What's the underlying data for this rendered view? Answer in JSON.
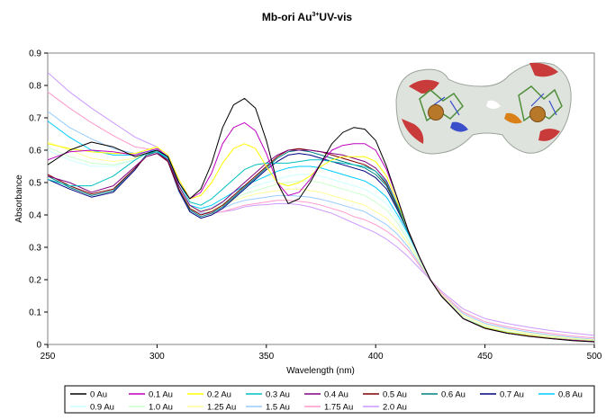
{
  "chart_data": {
    "type": "line",
    "title": "Mb-ori Au",
    "title_superscript": "3+",
    "title_suffix": "UV-vis",
    "xlabel": "Wavelength (nm)",
    "ylabel": "Absorbance",
    "xlim": [
      250,
      500
    ],
    "ylim": [
      0,
      0.9
    ],
    "x_ticks": [
      "250",
      "300",
      "350",
      "400",
      "450",
      "500"
    ],
    "y_ticks": [
      "0",
      "0.1",
      "0.2",
      "0.3",
      "0.4",
      "0.5",
      "0.6",
      "0.7",
      "0.8",
      "0.9"
    ],
    "grid": false,
    "legend_position": "bottom",
    "inset_image": "protein surface structure with two gold atoms",
    "x": [
      250,
      260,
      270,
      280,
      290,
      295,
      300,
      305,
      310,
      315,
      320,
      325,
      330,
      335,
      340,
      345,
      350,
      355,
      360,
      365,
      370,
      375,
      380,
      385,
      390,
      395,
      400,
      405,
      410,
      415,
      420,
      425,
      430,
      440,
      450,
      460,
      470,
      480,
      490,
      500
    ],
    "series": [
      {
        "name": "0 Au",
        "color": "#000000",
        "values": [
          0.555,
          0.6,
          0.625,
          0.61,
          0.58,
          0.59,
          0.6,
          0.58,
          0.5,
          0.45,
          0.48,
          0.56,
          0.67,
          0.74,
          0.76,
          0.73,
          0.63,
          0.5,
          0.435,
          0.45,
          0.5,
          0.56,
          0.62,
          0.655,
          0.67,
          0.665,
          0.63,
          0.55,
          0.45,
          0.35,
          0.27,
          0.2,
          0.15,
          0.08,
          0.05,
          0.035,
          0.025,
          0.018,
          0.012,
          0.008
        ]
      },
      {
        "name": "0.1 Au",
        "color": "#c000c0",
        "values": [
          0.57,
          0.595,
          0.6,
          0.595,
          0.585,
          0.595,
          0.605,
          0.58,
          0.5,
          0.45,
          0.47,
          0.53,
          0.62,
          0.67,
          0.685,
          0.66,
          0.59,
          0.5,
          0.46,
          0.47,
          0.51,
          0.56,
          0.6,
          0.615,
          0.62,
          0.62,
          0.6,
          0.54,
          0.45,
          0.35,
          0.27,
          0.2,
          0.15,
          0.08,
          0.05,
          0.035,
          0.026,
          0.019,
          0.013,
          0.009
        ]
      },
      {
        "name": "0.2 Au",
        "color": "#ffff00",
        "values": [
          0.62,
          0.605,
          0.595,
          0.59,
          0.59,
          0.6,
          0.61,
          0.585,
          0.51,
          0.45,
          0.46,
          0.5,
          0.56,
          0.605,
          0.62,
          0.605,
          0.55,
          0.5,
          0.49,
          0.5,
          0.52,
          0.55,
          0.57,
          0.58,
          0.58,
          0.58,
          0.565,
          0.52,
          0.44,
          0.35,
          0.27,
          0.2,
          0.15,
          0.08,
          0.052,
          0.037,
          0.028,
          0.02,
          0.014,
          0.01
        ]
      },
      {
        "name": "0.3 Au",
        "color": "#00c0c0",
        "values": [
          0.51,
          0.49,
          0.49,
          0.52,
          0.57,
          0.59,
          0.595,
          0.575,
          0.5,
          0.44,
          0.43,
          0.45,
          0.48,
          0.51,
          0.54,
          0.555,
          0.56,
          0.56,
          0.56,
          0.565,
          0.57,
          0.57,
          0.565,
          0.56,
          0.555,
          0.55,
          0.535,
          0.5,
          0.43,
          0.35,
          0.27,
          0.2,
          0.15,
          0.08,
          0.052,
          0.037,
          0.028,
          0.02,
          0.014,
          0.01
        ]
      },
      {
        "name": "0.4 Au",
        "color": "#800080",
        "values": [
          0.52,
          0.5,
          0.47,
          0.49,
          0.55,
          0.58,
          0.59,
          0.57,
          0.49,
          0.43,
          0.41,
          0.42,
          0.44,
          0.47,
          0.5,
          0.53,
          0.56,
          0.585,
          0.6,
          0.6,
          0.6,
          0.595,
          0.59,
          0.585,
          0.575,
          0.565,
          0.545,
          0.505,
          0.43,
          0.35,
          0.27,
          0.2,
          0.15,
          0.08,
          0.05,
          0.035,
          0.026,
          0.019,
          0.013,
          0.009
        ]
      },
      {
        "name": "0.5 Au",
        "color": "#800000",
        "values": [
          0.525,
          0.49,
          0.465,
          0.48,
          0.545,
          0.58,
          0.59,
          0.565,
          0.48,
          0.42,
          0.4,
          0.41,
          0.43,
          0.46,
          0.49,
          0.52,
          0.55,
          0.58,
          0.6,
          0.605,
          0.6,
          0.595,
          0.585,
          0.575,
          0.565,
          0.555,
          0.535,
          0.495,
          0.425,
          0.35,
          0.27,
          0.2,
          0.15,
          0.08,
          0.05,
          0.035,
          0.026,
          0.019,
          0.013,
          0.009
        ]
      },
      {
        "name": "0.6 Au",
        "color": "#008080",
        "values": [
          0.52,
          0.485,
          0.46,
          0.475,
          0.545,
          0.585,
          0.595,
          0.57,
          0.48,
          0.415,
          0.395,
          0.405,
          0.425,
          0.455,
          0.485,
          0.515,
          0.545,
          0.575,
          0.595,
          0.6,
          0.595,
          0.585,
          0.575,
          0.565,
          0.555,
          0.545,
          0.525,
          0.49,
          0.42,
          0.345,
          0.27,
          0.2,
          0.15,
          0.08,
          0.05,
          0.035,
          0.026,
          0.019,
          0.013,
          0.009
        ]
      },
      {
        "name": "0.7 Au",
        "color": "#000080",
        "values": [
          0.51,
          0.48,
          0.455,
          0.47,
          0.54,
          0.585,
          0.595,
          0.565,
          0.475,
          0.41,
          0.39,
          0.4,
          0.42,
          0.45,
          0.48,
          0.51,
          0.54,
          0.565,
          0.585,
          0.59,
          0.585,
          0.575,
          0.565,
          0.555,
          0.545,
          0.535,
          0.515,
          0.48,
          0.415,
          0.345,
          0.27,
          0.2,
          0.15,
          0.08,
          0.05,
          0.035,
          0.026,
          0.019,
          0.013,
          0.009
        ]
      },
      {
        "name": "0.8 Au",
        "color": "#00ccff",
        "values": [
          0.69,
          0.64,
          0.6,
          0.585,
          0.585,
          0.595,
          0.6,
          0.575,
          0.49,
          0.43,
          0.42,
          0.43,
          0.45,
          0.47,
          0.49,
          0.505,
          0.52,
          0.535,
          0.545,
          0.55,
          0.55,
          0.545,
          0.535,
          0.525,
          0.515,
          0.505,
          0.485,
          0.455,
          0.4,
          0.34,
          0.27,
          0.2,
          0.15,
          0.08,
          0.052,
          0.037,
          0.028,
          0.02,
          0.014,
          0.01
        ]
      },
      {
        "name": "0.9 Au",
        "color": "#ccffff",
        "values": [
          0.6,
          0.57,
          0.55,
          0.55,
          0.57,
          0.59,
          0.595,
          0.57,
          0.485,
          0.43,
          0.42,
          0.425,
          0.44,
          0.46,
          0.475,
          0.49,
          0.5,
          0.51,
          0.52,
          0.525,
          0.525,
          0.52,
          0.51,
          0.5,
          0.49,
          0.48,
          0.46,
          0.435,
          0.39,
          0.33,
          0.265,
          0.2,
          0.15,
          0.08,
          0.052,
          0.037,
          0.028,
          0.02,
          0.014,
          0.01
        ]
      },
      {
        "name": "1.0 Au",
        "color": "#ccffcc",
        "values": [
          0.61,
          0.58,
          0.56,
          0.555,
          0.57,
          0.59,
          0.595,
          0.57,
          0.48,
          0.425,
          0.415,
          0.42,
          0.435,
          0.45,
          0.465,
          0.475,
          0.485,
          0.495,
          0.5,
          0.505,
          0.505,
          0.5,
          0.49,
          0.48,
          0.47,
          0.46,
          0.44,
          0.415,
          0.375,
          0.32,
          0.26,
          0.2,
          0.15,
          0.085,
          0.055,
          0.04,
          0.03,
          0.022,
          0.016,
          0.012
        ]
      },
      {
        "name": "1.25 Au",
        "color": "#ffff99",
        "values": [
          0.625,
          0.6,
          0.575,
          0.565,
          0.575,
          0.59,
          0.595,
          0.565,
          0.475,
          0.42,
          0.41,
          0.415,
          0.43,
          0.445,
          0.455,
          0.465,
          0.47,
          0.475,
          0.48,
          0.48,
          0.475,
          0.47,
          0.46,
          0.45,
          0.44,
          0.43,
          0.41,
          0.39,
          0.355,
          0.31,
          0.255,
          0.2,
          0.155,
          0.09,
          0.06,
          0.045,
          0.034,
          0.026,
          0.019,
          0.014
        ]
      },
      {
        "name": "1.5 Au",
        "color": "#99ccff",
        "values": [
          0.72,
          0.67,
          0.635,
          0.605,
          0.59,
          0.595,
          0.595,
          0.565,
          0.47,
          0.415,
          0.405,
          0.41,
          0.42,
          0.435,
          0.445,
          0.45,
          0.455,
          0.46,
          0.46,
          0.458,
          0.455,
          0.448,
          0.44,
          0.43,
          0.42,
          0.41,
          0.39,
          0.37,
          0.34,
          0.3,
          0.25,
          0.2,
          0.155,
          0.095,
          0.065,
          0.05,
          0.038,
          0.029,
          0.022,
          0.016
        ]
      },
      {
        "name": "1.75 Au",
        "color": "#ff99cc",
        "values": [
          0.78,
          0.73,
          0.685,
          0.645,
          0.61,
          0.605,
          0.6,
          0.565,
          0.47,
          0.415,
          0.405,
          0.405,
          0.41,
          0.42,
          0.43,
          0.435,
          0.44,
          0.445,
          0.445,
          0.442,
          0.438,
          0.43,
          0.42,
          0.41,
          0.395,
          0.385,
          0.37,
          0.35,
          0.325,
          0.29,
          0.245,
          0.2,
          0.16,
          0.1,
          0.07,
          0.055,
          0.043,
          0.034,
          0.026,
          0.02
        ]
      },
      {
        "name": "2.0 Au",
        "color": "#cc99ff",
        "values": [
          0.84,
          0.78,
          0.73,
          0.685,
          0.64,
          0.625,
          0.61,
          0.575,
          0.48,
          0.42,
          0.405,
          0.405,
          0.41,
          0.415,
          0.425,
          0.43,
          0.432,
          0.435,
          0.435,
          0.432,
          0.425,
          0.415,
          0.405,
          0.39,
          0.375,
          0.36,
          0.345,
          0.325,
          0.3,
          0.27,
          0.235,
          0.2,
          0.165,
          0.11,
          0.08,
          0.065,
          0.053,
          0.043,
          0.035,
          0.028
        ]
      }
    ]
  }
}
